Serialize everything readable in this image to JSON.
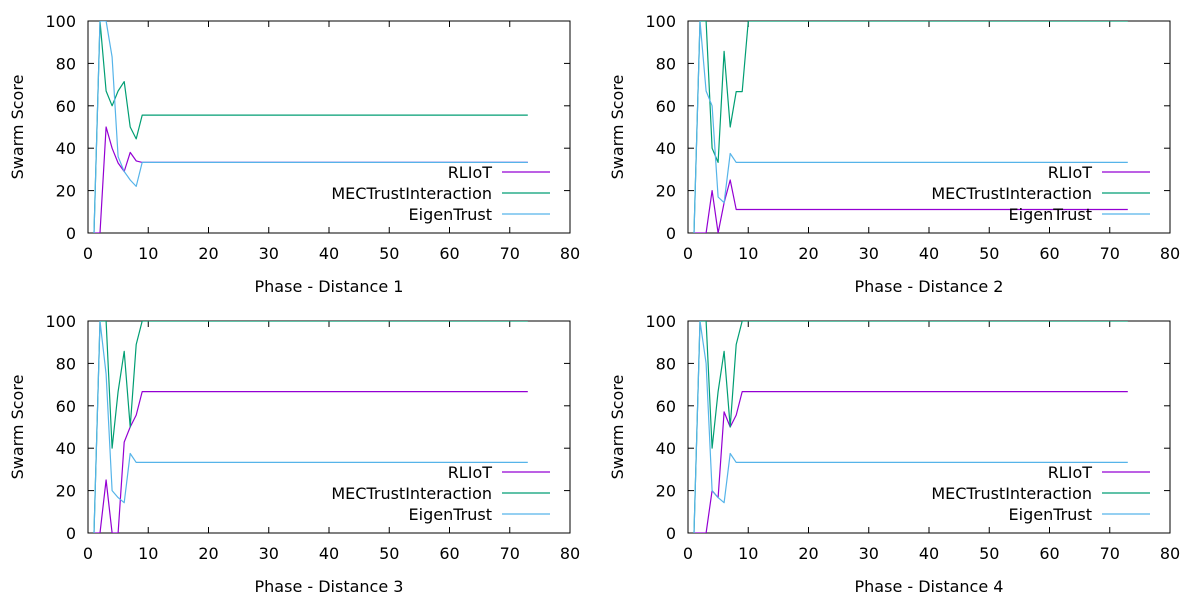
{
  "colors": {
    "RLIoT": "#9400d3",
    "MECTrustInteraction": "#009e73",
    "EigenTrust": "#56b4e9"
  },
  "chart_data": [
    {
      "type": "line",
      "xlabel": "Phase - Distance 1",
      "ylabel": "Swarm Score",
      "xlim": [
        0,
        80
      ],
      "ylim": [
        0,
        100
      ],
      "xticks": [
        0,
        10,
        20,
        30,
        40,
        50,
        60,
        70,
        80
      ],
      "yticks": [
        0,
        20,
        40,
        60,
        80,
        100
      ],
      "grid": false,
      "legend_position": "right",
      "series": [
        {
          "name": "RLIoT",
          "x": [
            1,
            2,
            3,
            4,
            5,
            6,
            7,
            8,
            9,
            73
          ],
          "y": [
            0,
            0,
            50,
            40,
            33,
            29,
            38,
            34,
            33.3,
            33.3
          ]
        },
        {
          "name": "MECTrustInteraction",
          "x": [
            1,
            2,
            3,
            4,
            5,
            6,
            7,
            8,
            9,
            73
          ],
          "y": [
            0,
            100,
            67,
            60,
            67,
            71.4,
            50,
            44.4,
            55.6,
            55.6
          ]
        },
        {
          "name": "EigenTrust",
          "x": [
            1,
            2,
            3,
            4,
            5,
            6,
            7,
            8,
            9,
            73
          ],
          "y": [
            0,
            100,
            100,
            83,
            36,
            29,
            25,
            22,
            33.3,
            33.3
          ]
        }
      ]
    },
    {
      "type": "line",
      "xlabel": "Phase - Distance 2",
      "ylabel": "Swarm Score",
      "xlim": [
        0,
        80
      ],
      "ylim": [
        0,
        100
      ],
      "xticks": [
        0,
        10,
        20,
        30,
        40,
        50,
        60,
        70,
        80
      ],
      "yticks": [
        0,
        20,
        40,
        60,
        80,
        100
      ],
      "grid": false,
      "legend_position": "right",
      "series": [
        {
          "name": "RLIoT",
          "x": [
            1,
            2,
            3,
            4,
            5,
            6,
            7,
            8,
            9,
            73
          ],
          "y": [
            0,
            0,
            0,
            20,
            0,
            14.3,
            25,
            11.1,
            11.1,
            11.1
          ]
        },
        {
          "name": "MECTrustInteraction",
          "x": [
            1,
            2,
            3,
            4,
            5,
            6,
            7,
            8,
            9,
            10,
            73
          ],
          "y": [
            0,
            100,
            100,
            40,
            33.3,
            85.7,
            50,
            66.7,
            66.7,
            100,
            100
          ]
        },
        {
          "name": "EigenTrust",
          "x": [
            1,
            2,
            3,
            4,
            5,
            6,
            7,
            8,
            9,
            73
          ],
          "y": [
            0,
            100,
            67,
            60,
            17,
            14.3,
            37.5,
            33.3,
            33.3,
            33.3
          ]
        }
      ]
    },
    {
      "type": "line",
      "xlabel": "Phase - Distance 3",
      "ylabel": "Swarm Score",
      "xlim": [
        0,
        80
      ],
      "ylim": [
        0,
        100
      ],
      "xticks": [
        0,
        10,
        20,
        30,
        40,
        50,
        60,
        70,
        80
      ],
      "yticks": [
        0,
        20,
        40,
        60,
        80,
        100
      ],
      "grid": false,
      "legend_position": "right",
      "series": [
        {
          "name": "RLIoT",
          "x": [
            1,
            2,
            3,
            4,
            5,
            6,
            7,
            8,
            9,
            73
          ],
          "y": [
            0,
            0,
            25,
            0,
            0,
            42.9,
            50,
            55.6,
            66.7,
            66.7
          ]
        },
        {
          "name": "MECTrustInteraction",
          "x": [
            1,
            2,
            3,
            4,
            5,
            6,
            7,
            8,
            9,
            73
          ],
          "y": [
            0,
            100,
            100,
            40,
            66.7,
            85.7,
            50,
            88.9,
            100,
            100
          ]
        },
        {
          "name": "EigenTrust",
          "x": [
            1,
            2,
            3,
            4,
            5,
            6,
            7,
            8,
            9,
            73
          ],
          "y": [
            0,
            100,
            75,
            20,
            16.7,
            14.3,
            37.5,
            33.3,
            33.3,
            33.3
          ]
        }
      ]
    },
    {
      "type": "line",
      "xlabel": "Phase - Distance 4",
      "ylabel": "Swarm Score",
      "xlim": [
        0,
        80
      ],
      "ylim": [
        0,
        100
      ],
      "xticks": [
        0,
        10,
        20,
        30,
        40,
        50,
        60,
        70,
        80
      ],
      "yticks": [
        0,
        20,
        40,
        60,
        80,
        100
      ],
      "grid": false,
      "legend_position": "right",
      "series": [
        {
          "name": "RLIoT",
          "x": [
            1,
            2,
            3,
            4,
            5,
            6,
            7,
            8,
            9,
            73
          ],
          "y": [
            0,
            0,
            0,
            20,
            16.7,
            57.1,
            50,
            55.6,
            66.7,
            66.7
          ]
        },
        {
          "name": "MECTrustInteraction",
          "x": [
            1,
            2,
            3,
            4,
            5,
            6,
            7,
            8,
            9,
            73
          ],
          "y": [
            0,
            100,
            100,
            40,
            66.7,
            85.7,
            50,
            88.9,
            100,
            100
          ]
        },
        {
          "name": "EigenTrust",
          "x": [
            1,
            2,
            3,
            4,
            5,
            6,
            7,
            8,
            9,
            73
          ],
          "y": [
            0,
            100,
            80,
            20,
            16.7,
            14.3,
            37.5,
            33.3,
            33.3,
            33.3
          ]
        }
      ]
    }
  ]
}
